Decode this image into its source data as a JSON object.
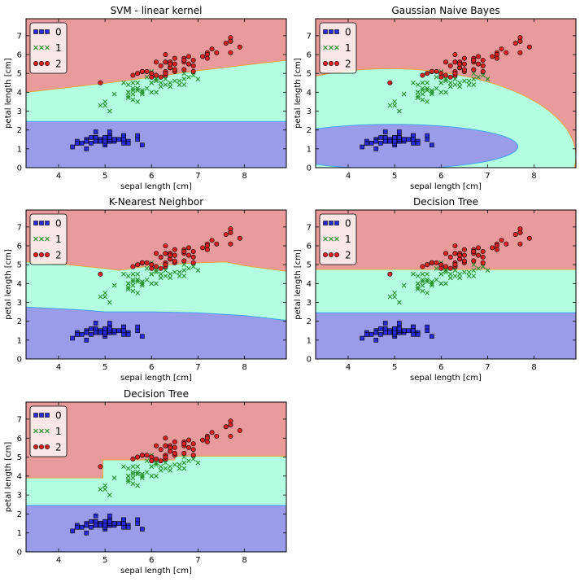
{
  "chart_data": [
    {
      "type": "scatter",
      "title": "SVM - linear kernel",
      "xlabel": "sepal length [cm]",
      "ylabel": "petal length [cm]",
      "xlim": [
        3.3,
        8.9
      ],
      "ylim": [
        0,
        7.9
      ],
      "xticks": [
        4,
        5,
        6,
        7,
        8
      ],
      "yticks": [
        0,
        1,
        2,
        3,
        4,
        5,
        6,
        7
      ],
      "legend": "top-left",
      "regions": {
        "class_1_below": 2.45,
        "class_2_boundary": [
          [
            3.3,
            4.0
          ],
          [
            5.0,
            4.48
          ],
          [
            6.0,
            4.8
          ],
          [
            7.0,
            5.15
          ],
          [
            8.9,
            5.7
          ]
        ]
      }
    },
    {
      "type": "scatter",
      "title": "Gaussian Naive Bayes",
      "xlabel": "sepal length [cm]",
      "ylabel": "petal length [cm]",
      "xlim": [
        3.3,
        8.9
      ],
      "ylim": [
        0,
        7.9
      ],
      "xticks": [
        4,
        5,
        6,
        7,
        8
      ],
      "yticks": [
        0,
        1,
        2,
        3,
        4,
        5,
        6,
        7
      ],
      "legend": "top-left",
      "regions": {
        "class_0_ellipse": {
          "cx": 4.95,
          "cy": 1.12,
          "rx": 2.7,
          "ry": 1.18
        },
        "class_2_ellipse": {
          "cx": 4.9,
          "cy": 0.6,
          "rx": 4.0,
          "ry": 4.65
        }
      }
    },
    {
      "type": "scatter",
      "title": "K-Nearest Neighbor",
      "xlabel": "sepal length [cm]",
      "ylabel": "petal length [cm]",
      "xlim": [
        3.3,
        8.9
      ],
      "ylim": [
        0,
        7.9
      ],
      "xticks": [
        4,
        5,
        6,
        7,
        8
      ],
      "yticks": [
        0,
        1,
        2,
        3,
        4,
        5,
        6,
        7
      ],
      "legend": "top-left",
      "regions": {
        "class_1_boundary": [
          [
            3.3,
            2.75
          ],
          [
            4.5,
            2.6
          ],
          [
            5.0,
            2.5
          ],
          [
            6.0,
            2.5
          ],
          [
            7.0,
            2.45
          ],
          [
            8.0,
            2.3
          ],
          [
            8.9,
            2.05
          ]
        ],
        "class_2_boundary": [
          [
            3.3,
            5.15
          ],
          [
            4.0,
            5.05
          ],
          [
            5.0,
            4.8
          ],
          [
            5.3,
            4.7
          ],
          [
            6.0,
            4.95
          ],
          [
            7.0,
            5.1
          ],
          [
            7.6,
            5.15
          ],
          [
            8.0,
            4.95
          ],
          [
            8.9,
            4.65
          ]
        ]
      }
    },
    {
      "type": "scatter",
      "title": "Decision Tree",
      "xlabel": "sepal length [cm]",
      "ylabel": "petal length [cm]",
      "xlim": [
        3.3,
        8.9
      ],
      "ylim": [
        0,
        7.9
      ],
      "xticks": [
        4,
        5,
        6,
        7,
        8
      ],
      "yticks": [
        0,
        1,
        2,
        3,
        4,
        5,
        6,
        7
      ],
      "legend": "top-left",
      "regions": {
        "class_1_below": 2.45,
        "class_2_boundary": [
          [
            3.3,
            4.75
          ],
          [
            8.9,
            4.75
          ]
        ]
      }
    },
    {
      "type": "scatter",
      "title": "Decision Tree",
      "xlabel": "sepal length [cm]",
      "ylabel": "petal length [cm]",
      "xlim": [
        3.3,
        8.9
      ],
      "ylim": [
        0,
        7.9
      ],
      "xticks": [
        4,
        5,
        6,
        7,
        8
      ],
      "yticks": [
        0,
        1,
        2,
        3,
        4,
        5,
        6,
        7
      ],
      "legend": "top-left",
      "regions": {
        "class_1_below": 2.45,
        "class_2_boundary": [
          [
            3.3,
            3.9
          ],
          [
            4.95,
            3.9
          ],
          [
            4.95,
            4.85
          ],
          [
            6.5,
            4.85
          ],
          [
            6.5,
            5.05
          ],
          [
            8.9,
            5.05
          ]
        ]
      }
    }
  ],
  "legend_labels": [
    "0",
    "1",
    "2"
  ],
  "colors": {
    "class0_region": "#9a9cea",
    "class1_region": "#b3fde0",
    "class2_region": "#e89b9a",
    "class0_marker": "#2929dd",
    "class1_marker": "#1c8a1c",
    "class2_marker": "#e22020",
    "boundary_1_2": "#e8a23a",
    "boundary_0_1": "#42a4f2"
  },
  "points": {
    "class0": [
      [
        5.1,
        1.4
      ],
      [
        4.9,
        1.4
      ],
      [
        4.7,
        1.3
      ],
      [
        4.6,
        1.5
      ],
      [
        5.0,
        1.4
      ],
      [
        5.4,
        1.7
      ],
      [
        4.6,
        1.4
      ],
      [
        5.0,
        1.5
      ],
      [
        4.4,
        1.4
      ],
      [
        4.9,
        1.5
      ],
      [
        5.4,
        1.5
      ],
      [
        4.8,
        1.6
      ],
      [
        4.8,
        1.4
      ],
      [
        4.3,
        1.1
      ],
      [
        5.8,
        1.2
      ],
      [
        5.7,
        1.5
      ],
      [
        5.4,
        1.3
      ],
      [
        5.1,
        1.4
      ],
      [
        5.7,
        1.7
      ],
      [
        5.1,
        1.5
      ],
      [
        5.4,
        1.7
      ],
      [
        5.1,
        1.5
      ],
      [
        4.6,
        1.0
      ],
      [
        5.1,
        1.7
      ],
      [
        4.8,
        1.9
      ],
      [
        5.0,
        1.6
      ],
      [
        5.0,
        1.6
      ],
      [
        5.2,
        1.5
      ],
      [
        5.2,
        1.4
      ],
      [
        4.7,
        1.6
      ],
      [
        4.8,
        1.6
      ],
      [
        5.4,
        1.5
      ],
      [
        5.2,
        1.5
      ],
      [
        5.5,
        1.4
      ],
      [
        4.9,
        1.5
      ],
      [
        5.0,
        1.2
      ],
      [
        5.5,
        1.3
      ],
      [
        4.9,
        1.4
      ],
      [
        4.4,
        1.3
      ],
      [
        5.1,
        1.5
      ],
      [
        5.0,
        1.3
      ],
      [
        4.5,
        1.3
      ],
      [
        4.4,
        1.3
      ],
      [
        5.0,
        1.6
      ],
      [
        5.1,
        1.9
      ],
      [
        4.8,
        1.4
      ],
      [
        5.1,
        1.6
      ],
      [
        4.6,
        1.4
      ],
      [
        5.3,
        1.5
      ],
      [
        5.0,
        1.4
      ]
    ],
    "class1": [
      [
        7.0,
        4.7
      ],
      [
        6.4,
        4.5
      ],
      [
        6.9,
        4.9
      ],
      [
        5.5,
        4.0
      ],
      [
        6.5,
        4.6
      ],
      [
        5.7,
        4.5
      ],
      [
        6.3,
        4.7
      ],
      [
        4.9,
        3.3
      ],
      [
        6.6,
        4.6
      ],
      [
        5.2,
        3.9
      ],
      [
        5.0,
        3.5
      ],
      [
        5.9,
        4.2
      ],
      [
        6.0,
        4.0
      ],
      [
        6.1,
        4.7
      ],
      [
        5.6,
        3.6
      ],
      [
        6.7,
        4.4
      ],
      [
        5.6,
        4.5
      ],
      [
        5.8,
        4.1
      ],
      [
        6.2,
        4.5
      ],
      [
        5.6,
        3.9
      ],
      [
        5.9,
        4.8
      ],
      [
        6.1,
        4.0
      ],
      [
        6.3,
        4.9
      ],
      [
        6.1,
        4.7
      ],
      [
        6.4,
        4.3
      ],
      [
        6.6,
        4.4
      ],
      [
        6.8,
        4.8
      ],
      [
        6.7,
        5.0
      ],
      [
        6.0,
        4.5
      ],
      [
        5.7,
        3.5
      ],
      [
        5.5,
        3.8
      ],
      [
        5.5,
        3.7
      ],
      [
        5.8,
        3.9
      ],
      [
        6.0,
        5.1
      ],
      [
        5.4,
        4.5
      ],
      [
        6.0,
        4.5
      ],
      [
        6.7,
        4.7
      ],
      [
        6.3,
        4.4
      ],
      [
        5.6,
        4.1
      ],
      [
        5.5,
        4.0
      ],
      [
        5.5,
        4.4
      ],
      [
        6.1,
        4.6
      ],
      [
        5.8,
        4.0
      ],
      [
        5.0,
        3.3
      ],
      [
        5.6,
        4.2
      ],
      [
        5.7,
        4.2
      ],
      [
        5.7,
        4.2
      ],
      [
        6.2,
        4.3
      ],
      [
        5.1,
        3.0
      ],
      [
        5.7,
        4.1
      ]
    ],
    "class2": [
      [
        6.3,
        6.0
      ],
      [
        5.8,
        5.1
      ],
      [
        7.1,
        5.9
      ],
      [
        6.3,
        5.6
      ],
      [
        6.5,
        5.8
      ],
      [
        7.6,
        6.6
      ],
      [
        4.9,
        4.5
      ],
      [
        7.3,
        6.3
      ],
      [
        6.7,
        5.8
      ],
      [
        7.2,
        6.1
      ],
      [
        6.5,
        5.1
      ],
      [
        6.4,
        5.3
      ],
      [
        6.8,
        5.5
      ],
      [
        5.7,
        5.0
      ],
      [
        5.8,
        5.1
      ],
      [
        6.4,
        5.3
      ],
      [
        6.5,
        5.5
      ],
      [
        7.7,
        6.7
      ],
      [
        7.7,
        6.9
      ],
      [
        6.0,
        5.0
      ],
      [
        6.9,
        5.7
      ],
      [
        5.6,
        4.9
      ],
      [
        7.7,
        6.7
      ],
      [
        6.3,
        4.9
      ],
      [
        6.7,
        5.7
      ],
      [
        7.2,
        6.0
      ],
      [
        6.2,
        4.8
      ],
      [
        6.1,
        4.9
      ],
      [
        6.4,
        5.6
      ],
      [
        7.2,
        5.8
      ],
      [
        7.4,
        6.1
      ],
      [
        7.9,
        6.4
      ],
      [
        6.4,
        5.6
      ],
      [
        6.3,
        5.1
      ],
      [
        6.1,
        5.6
      ],
      [
        7.7,
        6.1
      ],
      [
        6.3,
        5.6
      ],
      [
        6.4,
        5.5
      ],
      [
        6.0,
        4.8
      ],
      [
        6.9,
        5.4
      ],
      [
        6.7,
        5.6
      ],
      [
        6.9,
        5.1
      ],
      [
        5.8,
        5.1
      ],
      [
        6.8,
        5.9
      ],
      [
        6.7,
        5.7
      ],
      [
        6.7,
        5.2
      ],
      [
        6.3,
        5.0
      ],
      [
        6.5,
        5.2
      ],
      [
        6.2,
        5.4
      ],
      [
        5.9,
        5.1
      ]
    ]
  }
}
